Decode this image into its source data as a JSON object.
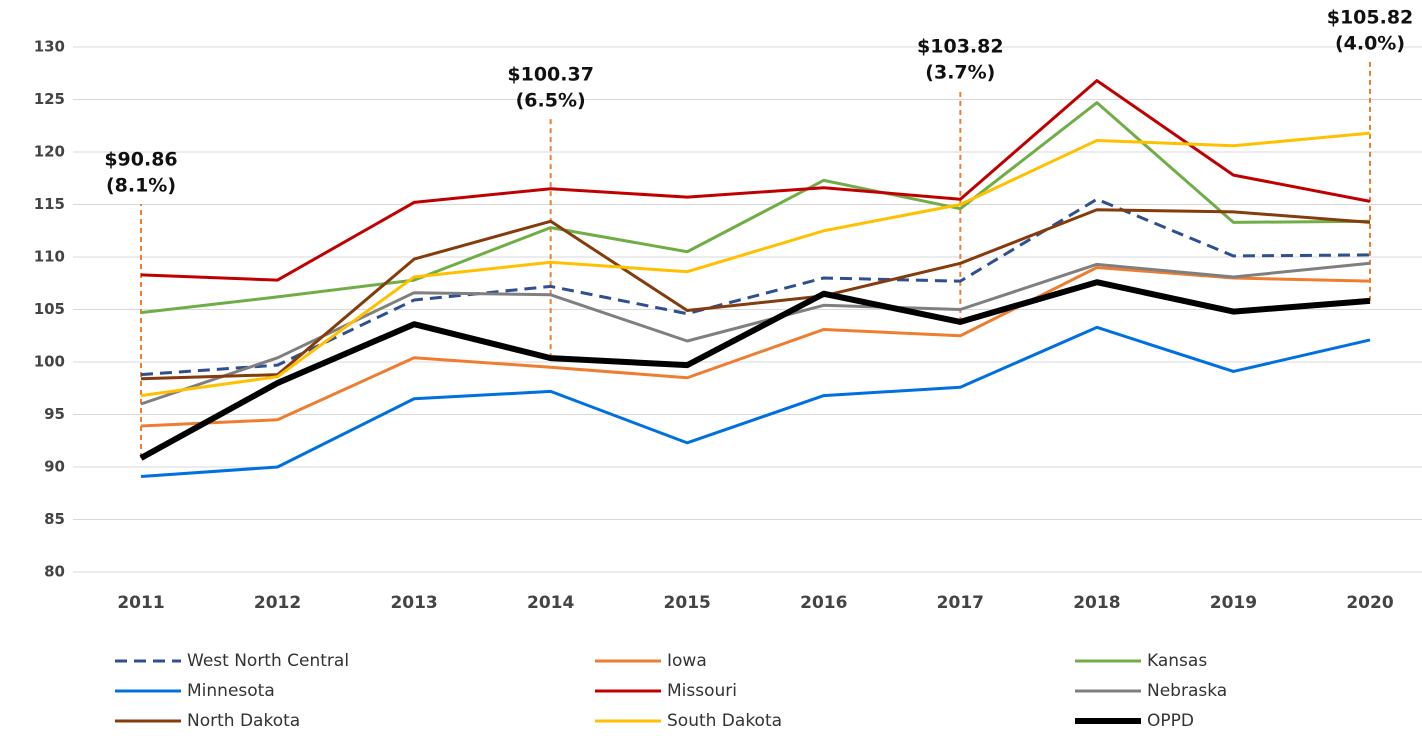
{
  "chart_data": {
    "type": "line",
    "categories": [
      "2011",
      "2012",
      "2013",
      "2014",
      "2015",
      "2016",
      "2017",
      "2018",
      "2019",
      "2020"
    ],
    "ylim": [
      80,
      130
    ],
    "yticks": [
      80,
      85,
      90,
      95,
      100,
      105,
      110,
      115,
      120,
      125,
      130
    ],
    "grid": true,
    "series": [
      {
        "name": "West North Central",
        "color": "#2f4f8f",
        "dashed": true,
        "values": [
          98.8,
          99.7,
          105.9,
          107.2,
          104.6,
          108.0,
          107.7,
          115.5,
          110.1,
          110.2
        ]
      },
      {
        "name": "Iowa",
        "color": "#ed7d31",
        "values": [
          93.9,
          94.5,
          100.4,
          99.5,
          98.5,
          103.1,
          102.5,
          109.0,
          108.0,
          107.7
        ]
      },
      {
        "name": "Kansas",
        "color": "#70ad47",
        "values": [
          104.7,
          106.2,
          107.8,
          112.8,
          110.5,
          117.3,
          114.6,
          124.7,
          113.3,
          113.4
        ]
      },
      {
        "name": "Minnesota",
        "color": "#0070e0",
        "values": [
          89.1,
          90.0,
          96.5,
          97.2,
          92.3,
          96.8,
          97.6,
          103.3,
          99.1,
          102.1
        ]
      },
      {
        "name": "Missouri",
        "color": "#c00000",
        "values": [
          108.3,
          107.8,
          115.2,
          116.5,
          115.7,
          116.6,
          115.5,
          126.8,
          117.8,
          115.3
        ]
      },
      {
        "name": "Nebraska",
        "color": "#7f7f7f",
        "values": [
          96.0,
          100.4,
          106.6,
          106.4,
          102.0,
          105.4,
          105.0,
          109.3,
          108.1,
          109.4
        ]
      },
      {
        "name": "North Dakota",
        "color": "#843c0c",
        "values": [
          98.4,
          98.8,
          109.8,
          113.4,
          104.9,
          106.3,
          109.4,
          114.5,
          114.3,
          113.3
        ]
      },
      {
        "name": "South Dakota",
        "color": "#ffc000",
        "values": [
          96.8,
          98.6,
          108.1,
          109.5,
          108.6,
          112.5,
          115.0,
          121.1,
          120.6,
          121.8
        ]
      },
      {
        "name": "OPPD",
        "color": "#000000",
        "bold": true,
        "values": [
          90.86,
          98.0,
          103.6,
          100.37,
          99.7,
          106.5,
          103.82,
          107.6,
          104.8,
          105.82
        ]
      }
    ],
    "annotations": [
      {
        "x": "2011",
        "lines": [
          "$90.86",
          "(8.1%)"
        ]
      },
      {
        "x": "2014",
        "lines": [
          "$100.37",
          "(6.5%)"
        ]
      },
      {
        "x": "2017",
        "lines": [
          "$103.82",
          "(3.7%)"
        ]
      },
      {
        "x": "2020",
        "lines": [
          "$105.82",
          "(4.0%)"
        ]
      }
    ]
  }
}
